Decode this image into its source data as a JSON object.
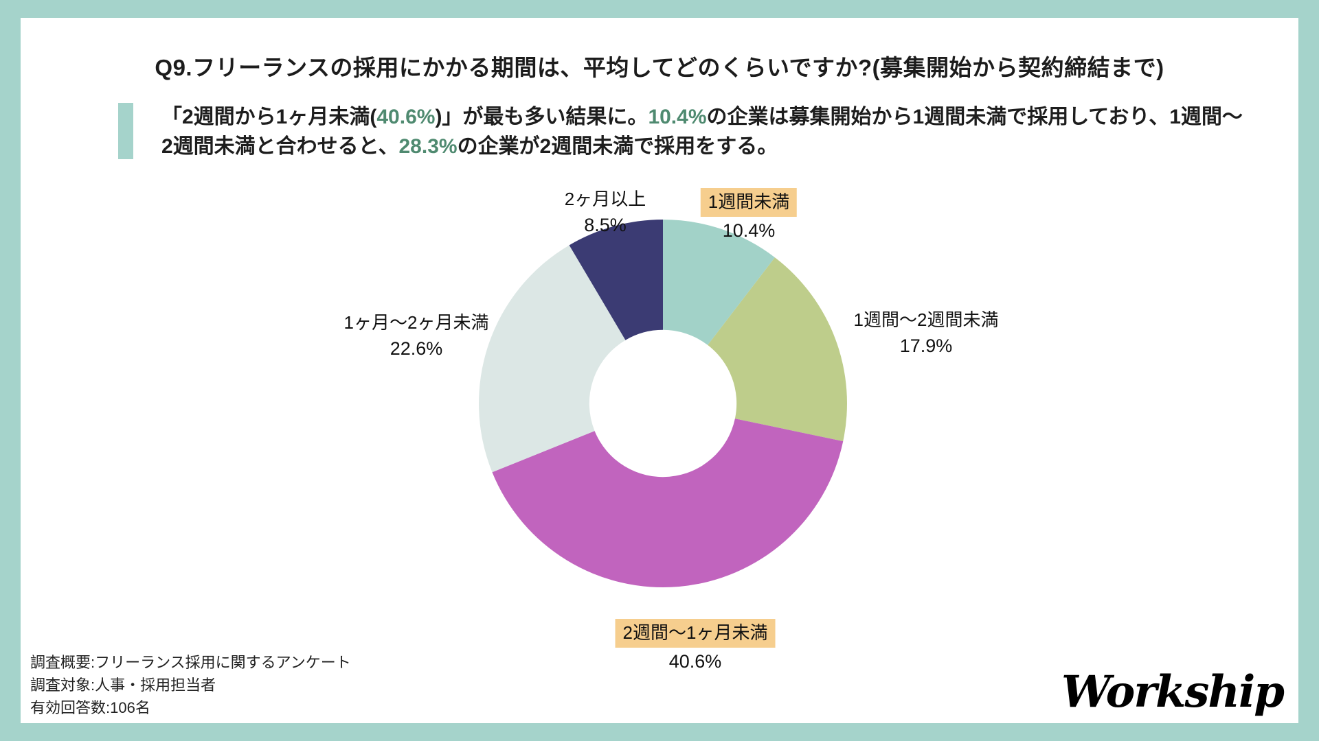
{
  "page": {
    "frame_color": "#a5d3cb",
    "card_color": "#ffffff"
  },
  "header": {
    "title": "Q9.フリーランスの採用にかかる期間は、平均してどのくらいですか?(募集開始から契約締結まで)"
  },
  "summary": {
    "accent_color": "#a5d3cb",
    "green_text_color": "#4f8a70",
    "seg1": "「2週間から1ヶ月未満(",
    "pct1": "40.6%",
    "seg2": ")」が最も多い結果に。",
    "pct2": "10.4%",
    "seg3": "の企業は募集開始から1週間未満で採用しており、1週間〜2週間未満と合わせると、",
    "pct3": "28.3%",
    "seg4": "の企業が2週間未満で採用をする。"
  },
  "chart_data": {
    "type": "pie",
    "donut": true,
    "inner_radius_ratio": 0.4,
    "start_angle_deg": 0,
    "direction": "clockwise",
    "legend_position": "labels-around-chart",
    "categories": [
      "1週間未満",
      "1週間〜2週間未満",
      "2週間〜1ヶ月未満",
      "1ヶ月〜2ヶ月未満",
      "2ヶ月以上"
    ],
    "values": [
      10.4,
      17.9,
      40.6,
      22.6,
      8.5
    ],
    "colors": [
      "#a2d2c8",
      "#becd8b",
      "#c164be",
      "#dce7e5",
      "#3b3b73"
    ],
    "highlight_box_color": "#f6ce8e",
    "slices": [
      {
        "label": "1週間未満",
        "pct": "10.4%",
        "highlighted": true
      },
      {
        "label": "1週間〜2週間未満",
        "pct": "17.9%",
        "highlighted": false
      },
      {
        "label": "2週間〜1ヶ月未満",
        "pct": "40.6%",
        "highlighted": true
      },
      {
        "label": "1ヶ月〜2ヶ月未満",
        "pct": "22.6%",
        "highlighted": false
      },
      {
        "label": "2ヶ月以上",
        "pct": "8.5%",
        "highlighted": false
      }
    ]
  },
  "footer": {
    "lines": [
      "調査概要:フリーランス採用に関するアンケート",
      "調査対象:人事・採用担当者",
      "有効回答数:106名"
    ]
  },
  "logo": {
    "text": "Workship"
  }
}
